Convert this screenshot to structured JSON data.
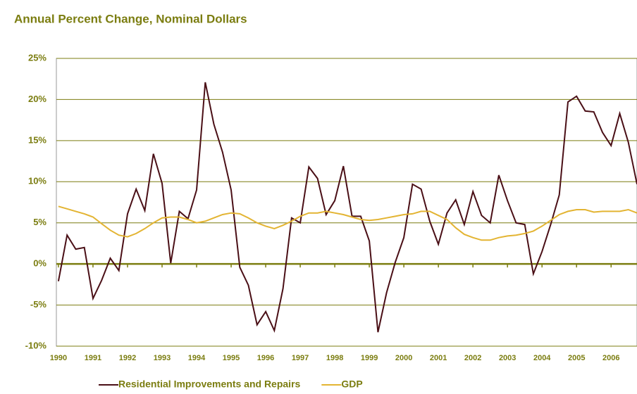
{
  "chart_data": {
    "type": "line",
    "title": "Annual Percent Change, Nominal Dollars",
    "x": [
      1990,
      1990.25,
      1990.5,
      1990.75,
      1991,
      1991.25,
      1991.5,
      1991.75,
      1992,
      1992.25,
      1992.5,
      1992.75,
      1993,
      1993.25,
      1993.5,
      1993.75,
      1994,
      1994.25,
      1994.5,
      1994.75,
      1995,
      1995.25,
      1995.5,
      1995.75,
      1996,
      1996.25,
      1996.5,
      1996.75,
      1997,
      1997.25,
      1997.5,
      1997.75,
      1998,
      1998.25,
      1998.5,
      1998.75,
      1999,
      1999.25,
      1999.5,
      1999.75,
      2000,
      2000.25,
      2000.5,
      2000.75,
      2001,
      2001.25,
      2001.5,
      2001.75,
      2002,
      2002.25,
      2002.5,
      2002.75,
      2003,
      2003.25,
      2003.5,
      2003.75,
      2004,
      2004.25,
      2004.5,
      2004.75,
      2005,
      2005.25,
      2005.5,
      2005.75,
      2006,
      2006.25,
      2006.5,
      2006.75
    ],
    "series": [
      {
        "name": "Residential Improvements and Repairs",
        "color": "#4a0f16",
        "values": [
          -2.1,
          3.5,
          1.8,
          2.0,
          -4.2,
          -2.0,
          0.7,
          -0.8,
          6.1,
          9.1,
          6.5,
          13.4,
          9.8,
          0.1,
          6.4,
          5.5,
          9.0,
          22.1,
          17.0,
          13.6,
          9.0,
          -0.4,
          -2.6,
          -7.4,
          -5.8,
          -8.1,
          -3.0,
          5.6,
          5.0,
          11.8,
          10.4,
          6.0,
          7.7,
          11.9,
          5.8,
          5.8,
          2.8,
          -8.3,
          -3.5,
          0.2,
          3.2,
          9.7,
          9.1,
          5.2,
          2.4,
          6.2,
          7.8,
          4.8,
          8.8,
          5.9,
          5.0,
          10.8,
          7.7,
          5.0,
          4.8,
          -1.2,
          1.5,
          4.8,
          8.4,
          19.7,
          20.4,
          18.6,
          18.5,
          16.0,
          14.4,
          18.3,
          14.8,
          9.7
        ]
      },
      {
        "name": "GDP",
        "color": "#e3b432",
        "values": [
          7.0,
          6.7,
          6.4,
          6.1,
          5.7,
          4.9,
          4.1,
          3.5,
          3.3,
          3.7,
          4.3,
          5.0,
          5.6,
          5.7,
          5.7,
          5.4,
          5.0,
          5.2,
          5.6,
          6.0,
          6.2,
          6.1,
          5.6,
          5.0,
          4.6,
          4.3,
          4.7,
          5.2,
          5.8,
          6.2,
          6.2,
          6.4,
          6.2,
          6.0,
          5.7,
          5.4,
          5.3,
          5.4,
          5.6,
          5.8,
          6.0,
          6.1,
          6.4,
          6.4,
          5.9,
          5.4,
          4.4,
          3.6,
          3.2,
          2.9,
          2.9,
          3.2,
          3.4,
          3.5,
          3.7,
          4.0,
          4.6,
          5.3,
          6.0,
          6.4,
          6.6,
          6.6,
          6.3,
          6.4,
          6.4,
          6.4,
          6.6,
          6.2
        ]
      }
    ],
    "xlim": [
      1989.94,
      2006.75
    ],
    "xticks": [
      1990,
      1991,
      1992,
      1993,
      1994,
      1995,
      1996,
      1997,
      1998,
      1999,
      2000,
      2001,
      2002,
      2003,
      2004,
      2005,
      2006
    ],
    "ylim": [
      -10,
      25
    ],
    "yticks": [
      {
        "value": -10,
        "label": "-10%"
      },
      {
        "value": -5,
        "label": "-5%"
      },
      {
        "value": 0,
        "label": "0%"
      },
      {
        "value": 5,
        "label": "5%"
      },
      {
        "value": 10,
        "label": "10%"
      },
      {
        "value": 15,
        "label": "15%"
      },
      {
        "value": 20,
        "label": "20%"
      },
      {
        "value": 25,
        "label": "25%"
      }
    ],
    "grid": true,
    "legend": "bottom"
  }
}
